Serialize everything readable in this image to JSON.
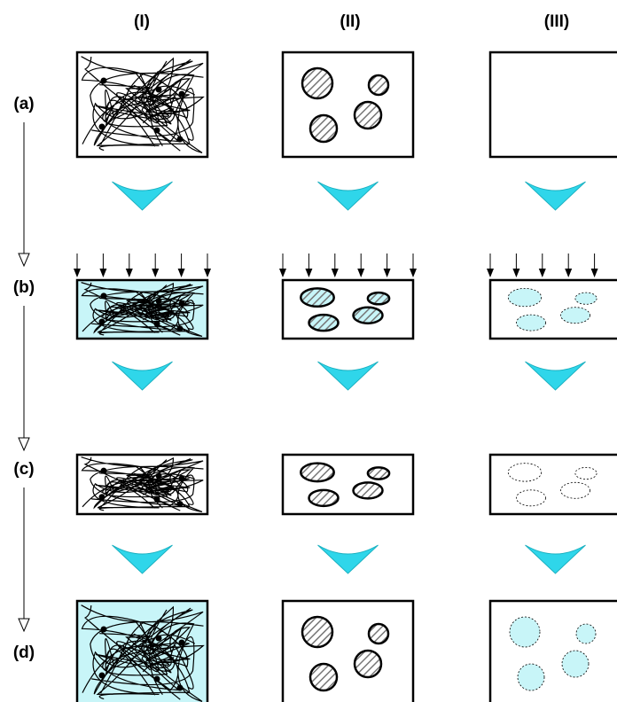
{
  "columns": [
    "(I)",
    "(II)",
    "(III)"
  ],
  "rows": [
    "(a)",
    "(b)",
    "(c)",
    "(d)"
  ]
}
